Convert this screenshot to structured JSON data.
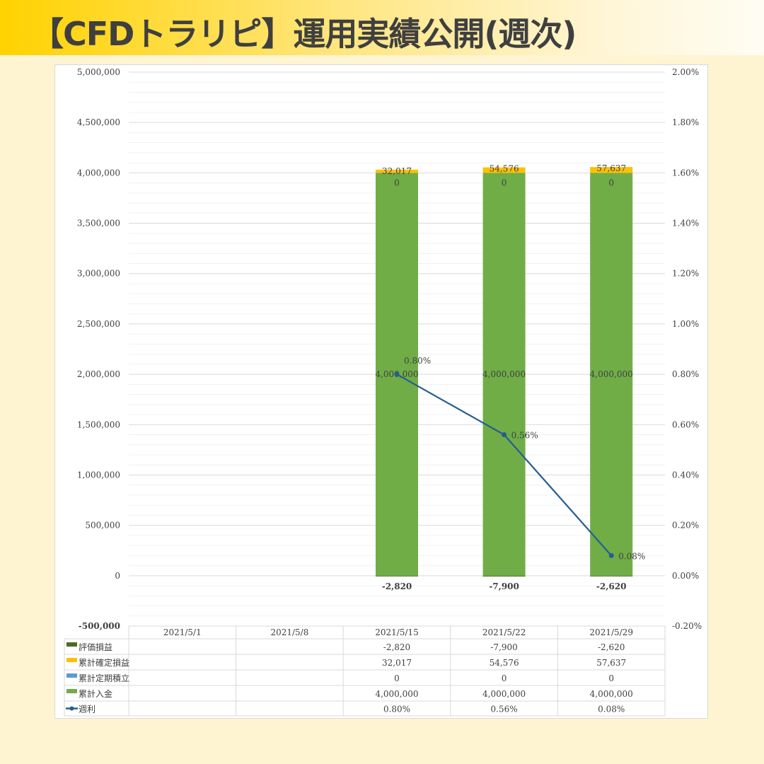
{
  "title": "【CFDトラリピ】運用実績公開(週次)",
  "chart_data": {
    "type": "bar+line",
    "categories": [
      "2021/5/1",
      "2021/5/8",
      "2021/5/15",
      "2021/5/22",
      "2021/5/29"
    ],
    "left_axis": {
      "ylim": [
        -500000,
        5000000
      ],
      "ticks": [
        "-500,000",
        "0",
        "500,000",
        "1,000,000",
        "1,500,000",
        "2,000,000",
        "2,500,000",
        "3,000,000",
        "3,500,000",
        "4,000,000",
        "4,500,000",
        "5,000,000"
      ],
      "tick_values": [
        -500000,
        0,
        500000,
        1000000,
        1500000,
        2000000,
        2500000,
        3000000,
        3500000,
        4000000,
        4500000,
        5000000
      ]
    },
    "right_axis": {
      "ylim": [
        -0.2,
        2.0
      ],
      "ticks": [
        "-0.20%",
        "0.00%",
        "0.20%",
        "0.40%",
        "0.60%",
        "0.80%",
        "1.00%",
        "1.20%",
        "1.40%",
        "1.60%",
        "1.80%",
        "2.00%"
      ],
      "tick_values": [
        -0.2,
        0,
        0.2,
        0.4,
        0.6,
        0.8,
        1.0,
        1.2,
        1.4,
        1.6,
        1.8,
        2.0
      ]
    },
    "series": [
      {
        "name": "評価損益",
        "type": "bar",
        "color": "#4A6A2A",
        "values": [
          null,
          null,
          -2820,
          -7900,
          -2620
        ],
        "labels": [
          "",
          "",
          "-2,820",
          "-7,900",
          "-2,620"
        ]
      },
      {
        "name": "累計確定損益",
        "type": "bar",
        "color": "#FFC000",
        "values": [
          null,
          null,
          32017,
          54576,
          57637
        ],
        "labels": [
          "",
          "",
          "32,017",
          "54,576",
          "57,637"
        ]
      },
      {
        "name": "累計定期積立",
        "type": "bar",
        "color": "#5B9BD5",
        "values": [
          null,
          null,
          0,
          0,
          0
        ],
        "labels": [
          "",
          "",
          "0",
          "0",
          "0"
        ]
      },
      {
        "name": "累計入金",
        "type": "bar",
        "color": "#70AD47",
        "values": [
          null,
          null,
          4000000,
          4000000,
          4000000
        ],
        "labels": [
          "",
          "",
          "4,000,000",
          "4,000,000",
          "4,000,000"
        ]
      },
      {
        "name": "週利",
        "type": "line",
        "axis": "right",
        "color": "#255E91",
        "values": [
          null,
          null,
          0.8,
          0.56,
          0.08
        ],
        "labels": [
          "",
          "",
          "0.80%",
          "0.56%",
          "0.08%"
        ]
      }
    ]
  }
}
